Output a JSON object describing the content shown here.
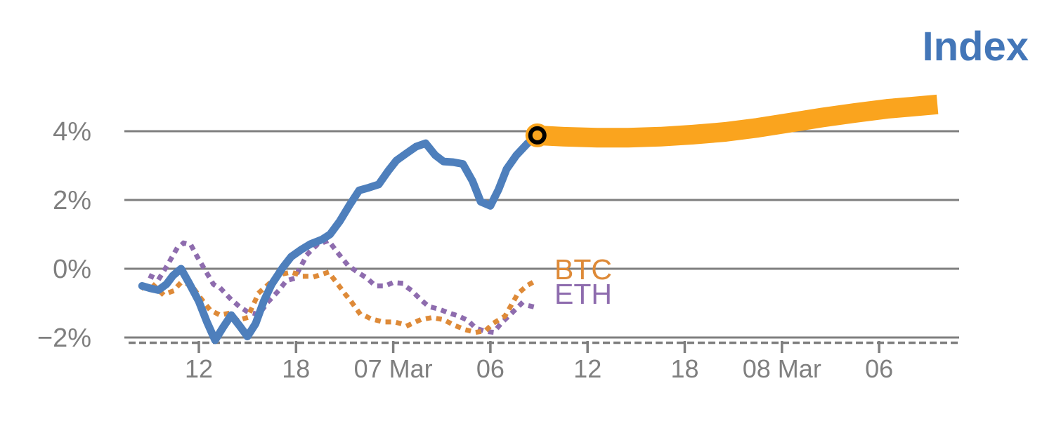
{
  "title": "Index",
  "legend": {
    "btc_label": "BTC",
    "eth_label": "ETH"
  },
  "colors": {
    "title_blue": "#4376b8",
    "index_blue": "#4e7fbc",
    "projection_orange": "#faa41e",
    "btc_orange": "#de8a38",
    "eth_purple": "#8e6cae",
    "axis_gray": "#7f7f7f",
    "marker_ring_black": "#000000",
    "background": "#ffffff"
  },
  "chart_data": {
    "type": "line",
    "title": "Index",
    "xlabel": "",
    "ylabel": "",
    "grid": "horizontal-only",
    "legend_position": "inline-right-of-dotted-series",
    "x_axis": {
      "unit": "hours since 06 Mar 00:00",
      "ticks": [
        {
          "t": 12,
          "label": "12"
        },
        {
          "t": 18,
          "label": "18"
        },
        {
          "t": 24,
          "label": "07 Mar"
        },
        {
          "t": 30,
          "label": "06"
        },
        {
          "t": 36,
          "label": "12"
        },
        {
          "t": 42,
          "label": "18"
        },
        {
          "t": 48,
          "label": "08 Mar"
        },
        {
          "t": 54,
          "label": "06"
        }
      ],
      "range_hours": [
        7.2,
        59.0
      ]
    },
    "y_axis": {
      "unit": "percent",
      "ticks": [
        {
          "v": 4,
          "label": "4%"
        },
        {
          "v": 2,
          "label": "2%"
        },
        {
          "v": 0,
          "label": "0%"
        },
        {
          "v": -2,
          "label": "−2%"
        }
      ],
      "range": [
        -2.3,
        5.1
      ]
    },
    "series": [
      {
        "name": "ETH",
        "style": "dotted",
        "color": "#8e6cae",
        "points": [
          [
            9.05,
            -0.22
          ],
          [
            9.5,
            -0.32
          ],
          [
            10.05,
            0.1
          ],
          [
            10.6,
            0.55
          ],
          [
            11.05,
            0.75
          ],
          [
            11.5,
            0.7
          ],
          [
            11.9,
            0.35
          ],
          [
            12.4,
            -0.05
          ],
          [
            12.9,
            -0.45
          ],
          [
            13.4,
            -0.6
          ],
          [
            13.9,
            -0.85
          ],
          [
            14.5,
            -1.1
          ],
          [
            15.0,
            -1.25
          ],
          [
            15.7,
            -1.33
          ],
          [
            16.3,
            -0.95
          ],
          [
            16.9,
            -0.65
          ],
          [
            17.4,
            -0.35
          ],
          [
            17.9,
            -0.28
          ],
          [
            18.7,
            0.42
          ],
          [
            19.3,
            0.7
          ],
          [
            20.0,
            0.82
          ],
          [
            20.6,
            0.45
          ],
          [
            21.2,
            0.1
          ],
          [
            21.8,
            -0.1
          ],
          [
            22.4,
            -0.28
          ],
          [
            22.9,
            -0.5
          ],
          [
            23.5,
            -0.5
          ],
          [
            24.0,
            -0.4
          ],
          [
            24.5,
            -0.42
          ],
          [
            25.1,
            -0.62
          ],
          [
            25.7,
            -0.9
          ],
          [
            26.2,
            -1.1
          ],
          [
            26.8,
            -1.17
          ],
          [
            27.4,
            -1.28
          ],
          [
            28.0,
            -1.37
          ],
          [
            28.6,
            -1.5
          ],
          [
            29.1,
            -1.73
          ],
          [
            29.7,
            -1.82
          ],
          [
            30.2,
            -1.85
          ],
          [
            30.7,
            -1.57
          ],
          [
            31.3,
            -1.3
          ],
          [
            31.9,
            -1.02
          ],
          [
            32.6,
            -1.1
          ]
        ]
      },
      {
        "name": "BTC",
        "style": "dotted",
        "color": "#de8a38",
        "points": [
          [
            8.6,
            -0.55
          ],
          [
            9.2,
            -0.48
          ],
          [
            9.8,
            -0.75
          ],
          [
            10.4,
            -0.65
          ],
          [
            10.9,
            -0.4
          ],
          [
            11.5,
            -0.45
          ],
          [
            12.1,
            -0.85
          ],
          [
            12.7,
            -1.2
          ],
          [
            13.3,
            -1.35
          ],
          [
            13.8,
            -1.3
          ],
          [
            14.4,
            -1.5
          ],
          [
            15.0,
            -1.42
          ],
          [
            15.7,
            -0.7
          ],
          [
            16.3,
            -0.45
          ],
          [
            16.9,
            -0.18
          ],
          [
            17.7,
            -0.1
          ],
          [
            18.5,
            -0.22
          ],
          [
            19.2,
            -0.22
          ],
          [
            20.0,
            -0.1
          ],
          [
            20.5,
            -0.4
          ],
          [
            21.0,
            -0.72
          ],
          [
            21.4,
            -0.95
          ],
          [
            21.9,
            -1.28
          ],
          [
            22.6,
            -1.45
          ],
          [
            23.4,
            -1.55
          ],
          [
            24.1,
            -1.55
          ],
          [
            24.9,
            -1.65
          ],
          [
            25.7,
            -1.48
          ],
          [
            26.4,
            -1.42
          ],
          [
            27.1,
            -1.48
          ],
          [
            27.8,
            -1.65
          ],
          [
            28.5,
            -1.78
          ],
          [
            29.1,
            -1.85
          ],
          [
            29.7,
            -1.8
          ],
          [
            30.2,
            -1.58
          ],
          [
            30.9,
            -1.38
          ],
          [
            31.3,
            -1.05
          ],
          [
            31.7,
            -0.72
          ],
          [
            32.3,
            -0.48
          ],
          [
            32.8,
            -0.35
          ]
        ]
      },
      {
        "name": "Index",
        "style": "solid",
        "color": "#4e7fbc",
        "points": [
          [
            8.5,
            -0.5
          ],
          [
            9.0,
            -0.57
          ],
          [
            9.5,
            -0.62
          ],
          [
            10.0,
            -0.45
          ],
          [
            10.4,
            -0.2
          ],
          [
            10.9,
            0.0
          ],
          [
            11.4,
            -0.42
          ],
          [
            12.0,
            -0.95
          ],
          [
            12.5,
            -1.55
          ],
          [
            13.0,
            -2.08
          ],
          [
            13.5,
            -1.7
          ],
          [
            14.0,
            -1.35
          ],
          [
            14.5,
            -1.65
          ],
          [
            15.0,
            -1.97
          ],
          [
            15.5,
            -1.6
          ],
          [
            16.0,
            -0.95
          ],
          [
            16.5,
            -0.45
          ],
          [
            17.2,
            0.05
          ],
          [
            17.7,
            0.35
          ],
          [
            18.3,
            0.55
          ],
          [
            18.9,
            0.72
          ],
          [
            19.6,
            0.85
          ],
          [
            20.1,
            1.0
          ],
          [
            20.7,
            1.38
          ],
          [
            21.3,
            1.85
          ],
          [
            21.9,
            2.28
          ],
          [
            22.5,
            2.36
          ],
          [
            23.1,
            2.45
          ],
          [
            23.7,
            2.85
          ],
          [
            24.2,
            3.15
          ],
          [
            24.8,
            3.35
          ],
          [
            25.4,
            3.55
          ],
          [
            26.0,
            3.65
          ],
          [
            26.6,
            3.3
          ],
          [
            27.1,
            3.12
          ],
          [
            27.7,
            3.1
          ],
          [
            28.3,
            3.05
          ],
          [
            28.9,
            2.55
          ],
          [
            29.4,
            1.95
          ],
          [
            30.0,
            1.83
          ],
          [
            30.5,
            2.3
          ],
          [
            31.0,
            2.9
          ],
          [
            31.6,
            3.3
          ],
          [
            32.3,
            3.65
          ],
          [
            32.9,
            3.88
          ]
        ]
      },
      {
        "name": "Index projection",
        "style": "thick-band",
        "color": "#faa41e",
        "points": [
          [
            32.9,
            3.88
          ],
          [
            34.5,
            3.84
          ],
          [
            36.6,
            3.81
          ],
          [
            38.5,
            3.81
          ],
          [
            40.5,
            3.84
          ],
          [
            42.5,
            3.9
          ],
          [
            44.5,
            3.98
          ],
          [
            46.5,
            4.1
          ],
          [
            48.5,
            4.25
          ],
          [
            50.5,
            4.4
          ],
          [
            52.5,
            4.53
          ],
          [
            54.5,
            4.65
          ],
          [
            56.2,
            4.72
          ],
          [
            57.6,
            4.78
          ]
        ]
      }
    ],
    "marker": {
      "series": "Index",
      "t": 32.9,
      "v": 3.88,
      "shape": "circle-with-black-ring"
    }
  }
}
